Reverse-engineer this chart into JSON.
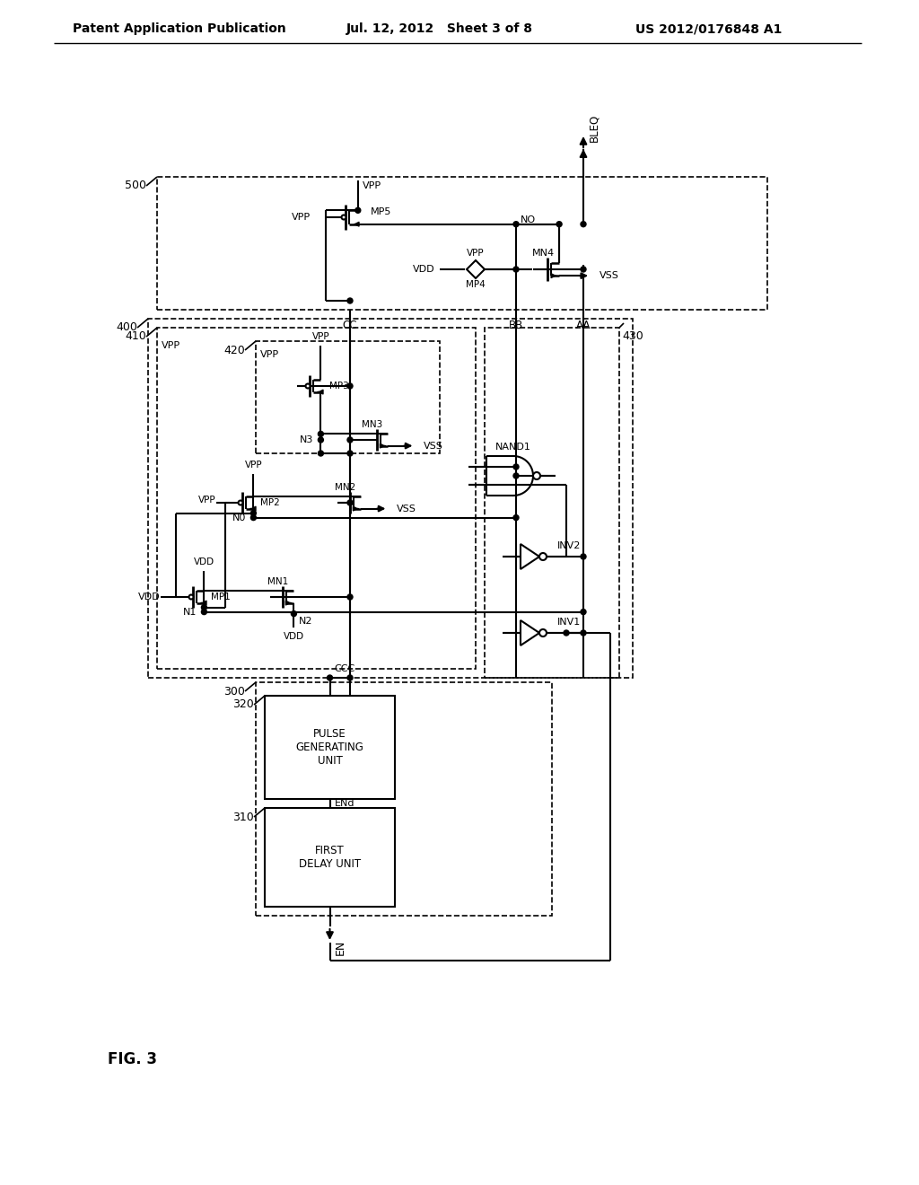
{
  "header_left": "Patent Application Publication",
  "header_mid": "Jul. 12, 2012   Sheet 3 of 8",
  "header_right": "US 2012/0176848 A1",
  "fig_label": "FIG. 3",
  "bg_color": "#ffffff"
}
